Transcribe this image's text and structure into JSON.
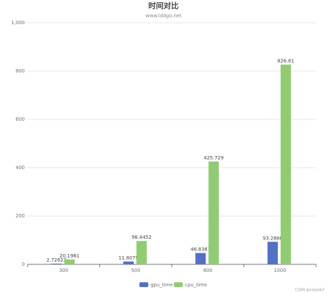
{
  "chart_data": {
    "type": "bar",
    "title": "时间对比",
    "subtitle": "www.lddgo.net",
    "categories": [
      "300",
      "500",
      "800",
      "1000"
    ],
    "series": [
      {
        "name": "gpu_time",
        "color": "#5470c6",
        "values": [
          2.72623,
          11.8079,
          46.8381,
          93.2886
        ]
      },
      {
        "name": "cpu_time",
        "color": "#91cc75",
        "values": [
          20.1981,
          96.4452,
          425.729,
          826.81
        ]
      }
    ],
    "ylim": [
      0,
      1000
    ],
    "yticks": [
      0,
      200,
      400,
      600,
      800,
      {
        "value": 1000,
        "label": "1,000"
      }
    ],
    "grid": true,
    "legend": "bottom",
    "watermark": "CSDN @xiaojiduf"
  }
}
